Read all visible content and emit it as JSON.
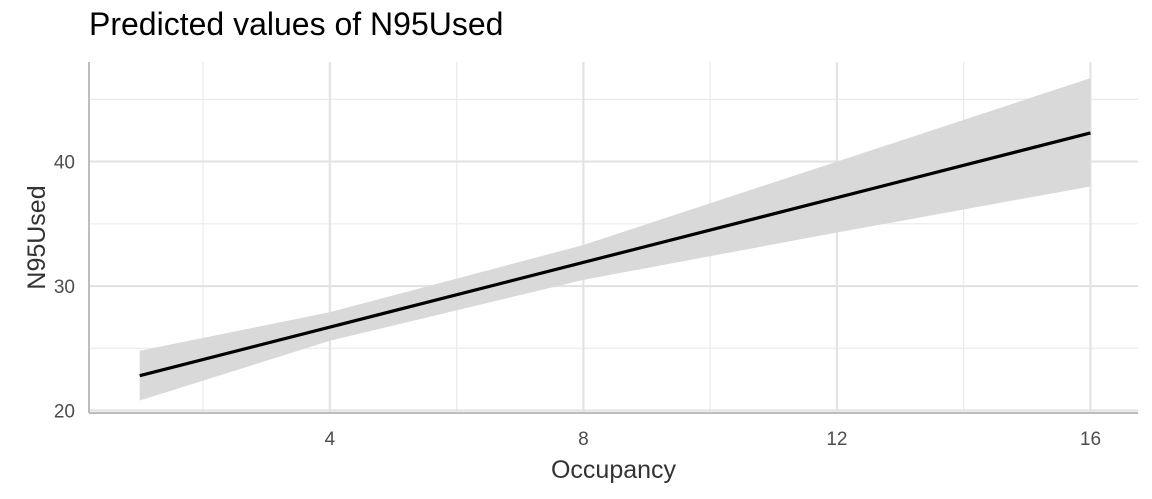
{
  "chart_data": {
    "type": "line",
    "title": "Predicted values of N95Used",
    "xlabel": "Occupancy",
    "ylabel": "N95Used",
    "xlim": [
      0.2,
      16.75
    ],
    "ylim": [
      19.8,
      48.0
    ],
    "x_ticks": [
      4,
      8,
      12,
      16
    ],
    "y_ticks": [
      20,
      30,
      40
    ],
    "x_minor_ticks": [
      2,
      6,
      10,
      14
    ],
    "y_minor_ticks": [
      25,
      35,
      45
    ],
    "grid": true,
    "series": [
      {
        "type": "line",
        "color": "#000000",
        "x": [
          1,
          16
        ],
        "y": [
          22.8,
          42.3
        ]
      },
      {
        "type": "ribbon",
        "color": "#d9d9d9",
        "x": [
          1,
          4,
          8,
          12,
          16
        ],
        "lower": [
          20.8,
          25.6,
          30.5,
          34.3,
          38.0
        ],
        "upper": [
          24.8,
          27.9,
          33.3,
          40.0,
          46.7
        ]
      }
    ]
  }
}
